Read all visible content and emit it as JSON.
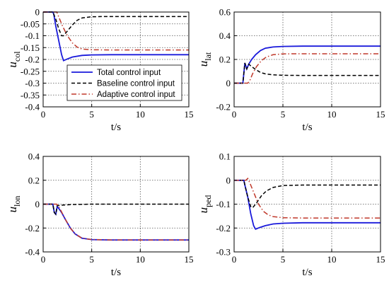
{
  "legend": {
    "entries": [
      {
        "label": "Total control input",
        "style": "solid",
        "color": "#1a1adb"
      },
      {
        "label": "Baseline control input",
        "style": "dashed",
        "color": "#000000"
      },
      {
        "label": "Adaptive control input",
        "style": "dashdot",
        "color": "#c0392b"
      }
    ],
    "location": "subplot-1 lower-center"
  },
  "colors": {
    "total": "#1a1adb",
    "baseline": "#000000",
    "adaptive": "#c0392b",
    "grid": "#555555"
  },
  "chart_data": [
    {
      "type": "line",
      "ylabel_main": "u",
      "ylabel_sub": "col",
      "xlabel": "t/s",
      "xlim": [
        0,
        15
      ],
      "ylim": [
        -0.4,
        0
      ],
      "xticks": [
        "0",
        "5",
        "10",
        "15"
      ],
      "yticks": [
        "0",
        "-0.05",
        "-0.1",
        "-0.15",
        "-0.2",
        "-0.25",
        "-0.3",
        "-0.35",
        "-0.4"
      ],
      "grid": true,
      "series": [
        {
          "name": "Total control input",
          "key": "total",
          "points": [
            [
              0,
              0
            ],
            [
              1,
              0
            ],
            [
              1.1,
              -0.01
            ],
            [
              1.3,
              -0.06
            ],
            [
              1.6,
              -0.12
            ],
            [
              1.9,
              -0.18
            ],
            [
              2.1,
              -0.205
            ],
            [
              2.5,
              -0.198
            ],
            [
              3,
              -0.19
            ],
            [
              4,
              -0.183
            ],
            [
              5,
              -0.181
            ],
            [
              7,
              -0.18
            ],
            [
              15,
              -0.18
            ]
          ]
        },
        {
          "name": "Baseline control input",
          "key": "baseline",
          "points": [
            [
              0,
              0
            ],
            [
              1,
              0
            ],
            [
              1.3,
              -0.03
            ],
            [
              1.6,
              -0.07
            ],
            [
              1.9,
              -0.1
            ],
            [
              2.1,
              -0.1
            ],
            [
              2.5,
              -0.08
            ],
            [
              3,
              -0.055
            ],
            [
              3.5,
              -0.035
            ],
            [
              4,
              -0.025
            ],
            [
              5,
              -0.02
            ],
            [
              6,
              -0.019
            ],
            [
              15,
              -0.019
            ]
          ]
        },
        {
          "name": "Adaptive control input",
          "key": "adaptive",
          "points": [
            [
              0,
              0
            ],
            [
              1.4,
              0
            ],
            [
              1.6,
              -0.02
            ],
            [
              2,
              -0.06
            ],
            [
              2.5,
              -0.1
            ],
            [
              3,
              -0.13
            ],
            [
              3.5,
              -0.148
            ],
            [
              4,
              -0.156
            ],
            [
              5,
              -0.159
            ],
            [
              7,
              -0.16
            ],
            [
              15,
              -0.16
            ]
          ]
        }
      ]
    },
    {
      "type": "line",
      "ylabel_main": "u",
      "ylabel_sub": "lat",
      "xlabel": "t/s",
      "xlim": [
        0,
        15
      ],
      "ylim": [
        -0.2,
        0.6
      ],
      "xticks": [
        "0",
        "5",
        "10",
        "15"
      ],
      "yticks": [
        "0.6",
        "0.4",
        "0.2",
        "0",
        "-0.2"
      ],
      "grid": true,
      "series": [
        {
          "name": "Total control input",
          "key": "total",
          "points": [
            [
              0,
              0
            ],
            [
              0.9,
              0
            ],
            [
              1.1,
              0.17
            ],
            [
              1.3,
              0.12
            ],
            [
              1.5,
              0.16
            ],
            [
              1.8,
              0.2
            ],
            [
              2.2,
              0.24
            ],
            [
              2.7,
              0.275
            ],
            [
              3.2,
              0.295
            ],
            [
              4,
              0.305
            ],
            [
              5,
              0.31
            ],
            [
              7,
              0.312
            ],
            [
              15,
              0.312
            ]
          ]
        },
        {
          "name": "Baseline control input",
          "key": "baseline",
          "points": [
            [
              0,
              0
            ],
            [
              0.9,
              0
            ],
            [
              1.1,
              0.17
            ],
            [
              1.3,
              0.12
            ],
            [
              1.5,
              0.16
            ],
            [
              1.8,
              0.14
            ],
            [
              2.2,
              0.115
            ],
            [
              2.7,
              0.09
            ],
            [
              3.2,
              0.078
            ],
            [
              4,
              0.07
            ],
            [
              5,
              0.066
            ],
            [
              7,
              0.065
            ],
            [
              15,
              0.065
            ]
          ]
        },
        {
          "name": "Adaptive control input",
          "key": "adaptive",
          "points": [
            [
              0,
              0
            ],
            [
              1.4,
              0
            ],
            [
              1.6,
              0.02
            ],
            [
              1.9,
              0.08
            ],
            [
              2.3,
              0.14
            ],
            [
              2.8,
              0.19
            ],
            [
              3.3,
              0.22
            ],
            [
              4,
              0.24
            ],
            [
              5,
              0.247
            ],
            [
              7,
              0.248
            ],
            [
              15,
              0.248
            ]
          ]
        }
      ]
    },
    {
      "type": "line",
      "ylabel_main": "u",
      "ylabel_sub": "lon",
      "xlabel": "t/s",
      "xlim": [
        0,
        15
      ],
      "ylim": [
        -0.4,
        0.4
      ],
      "xticks": [
        "0",
        "5",
        "10",
        "15"
      ],
      "yticks": [
        "0.4",
        "0.2",
        "0",
        "-0.2",
        "-0.4"
      ],
      "grid": true,
      "series": [
        {
          "name": "Total control input",
          "key": "total",
          "points": [
            [
              0,
              0
            ],
            [
              1,
              0
            ],
            [
              1.15,
              -0.07
            ],
            [
              1.3,
              -0.085
            ],
            [
              1.45,
              -0.02
            ],
            [
              1.6,
              -0.035
            ],
            [
              1.9,
              -0.07
            ],
            [
              2.3,
              -0.13
            ],
            [
              2.8,
              -0.2
            ],
            [
              3.3,
              -0.25
            ],
            [
              4,
              -0.285
            ],
            [
              5,
              -0.297
            ],
            [
              7,
              -0.3
            ],
            [
              15,
              -0.3
            ]
          ]
        },
        {
          "name": "Baseline control input",
          "key": "baseline",
          "points": [
            [
              0,
              0
            ],
            [
              1,
              0
            ],
            [
              1.15,
              -0.07
            ],
            [
              1.3,
              -0.085
            ],
            [
              1.45,
              -0.01
            ],
            [
              1.6,
              -0.012
            ],
            [
              2,
              -0.008
            ],
            [
              3,
              -0.003
            ],
            [
              5,
              0
            ],
            [
              15,
              0
            ]
          ]
        },
        {
          "name": "Adaptive control input",
          "key": "adaptive",
          "points": [
            [
              0,
              0
            ],
            [
              1.4,
              0
            ],
            [
              1.6,
              -0.02
            ],
            [
              1.9,
              -0.065
            ],
            [
              2.3,
              -0.13
            ],
            [
              2.8,
              -0.2
            ],
            [
              3.3,
              -0.25
            ],
            [
              4,
              -0.285
            ],
            [
              5,
              -0.297
            ],
            [
              7,
              -0.3
            ],
            [
              15,
              -0.3
            ]
          ]
        }
      ]
    },
    {
      "type": "line",
      "ylabel_main": "u",
      "ylabel_sub": "ped",
      "xlabel": "t/s",
      "xlim": [
        0,
        15
      ],
      "ylim": [
        -0.3,
        0.1
      ],
      "xticks": [
        "0",
        "5",
        "10",
        "15"
      ],
      "yticks": [
        "0.1",
        "0",
        "-0.1",
        "-0.2",
        "-0.3"
      ],
      "grid": true,
      "series": [
        {
          "name": "Total control input",
          "key": "total",
          "points": [
            [
              0,
              0
            ],
            [
              1,
              0
            ],
            [
              1.1,
              -0.02
            ],
            [
              1.4,
              -0.07
            ],
            [
              1.7,
              -0.14
            ],
            [
              2,
              -0.19
            ],
            [
              2.2,
              -0.205
            ],
            [
              2.6,
              -0.198
            ],
            [
              3.2,
              -0.19
            ],
            [
              4,
              -0.183
            ],
            [
              5,
              -0.18
            ],
            [
              7,
              -0.178
            ],
            [
              15,
              -0.178
            ]
          ]
        },
        {
          "name": "Baseline control input",
          "key": "baseline",
          "points": [
            [
              0,
              0
            ],
            [
              1,
              0
            ],
            [
              1.1,
              -0.02
            ],
            [
              1.4,
              -0.07
            ],
            [
              1.7,
              -0.11
            ],
            [
              1.9,
              -0.115
            ],
            [
              2.3,
              -0.095
            ],
            [
              2.8,
              -0.065
            ],
            [
              3.3,
              -0.045
            ],
            [
              4,
              -0.03
            ],
            [
              5,
              -0.022
            ],
            [
              7,
              -0.02
            ],
            [
              15,
              -0.02
            ]
          ]
        },
        {
          "name": "Adaptive control input",
          "key": "adaptive",
          "points": [
            [
              0,
              0
            ],
            [
              1.2,
              0
            ],
            [
              1.4,
              0.008
            ],
            [
              1.6,
              -0.01
            ],
            [
              2,
              -0.05
            ],
            [
              2.5,
              -0.1
            ],
            [
              3,
              -0.13
            ],
            [
              3.5,
              -0.145
            ],
            [
              4,
              -0.152
            ],
            [
              5,
              -0.157
            ],
            [
              7,
              -0.158
            ],
            [
              15,
              -0.158
            ]
          ]
        }
      ]
    }
  ]
}
